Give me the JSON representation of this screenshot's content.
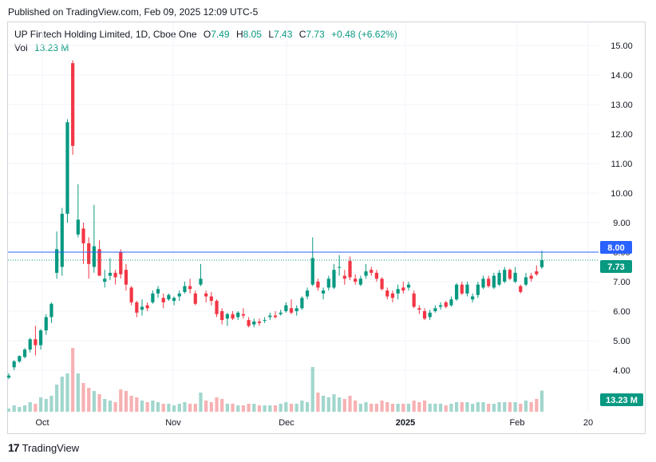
{
  "header": {
    "published": "Published on TradingView.com, Feb 09, 2025 12:09 UTC-5"
  },
  "legend": {
    "name": "UP Fintech Holding Limited, 1D, Cboe One",
    "o_label": "O",
    "o_value": "7.49",
    "h_label": "H",
    "h_value": "8.05",
    "l_label": "L",
    "l_value": "7.43",
    "c_label": "C",
    "c_value": "7.73",
    "change": "+0.48 (+6.62%)",
    "vol_label": "Vol",
    "vol_value": "13.23 M"
  },
  "footer": {
    "brand": "TradingView"
  },
  "colors": {
    "up": "#089981",
    "down": "#f23645",
    "up_vol": "#a1d6cd",
    "down_vol": "#f7b1b3",
    "hline": "#2962ff"
  },
  "chart_data": {
    "type": "candlestick",
    "title": "UP Fintech Holding Limited, 1D, Cboe One",
    "ylim": [
      3.0,
      15.5
    ],
    "y_ticks": [
      "4.00",
      "5.00",
      "6.00",
      "7.00",
      "8.00",
      "9.00",
      "10.00",
      "11.00",
      "12.00",
      "13.00",
      "14.00",
      "15.00"
    ],
    "x_ticks": [
      "Oct",
      "Nov",
      "Dec",
      "2025",
      "Feb",
      "20"
    ],
    "price_labels": {
      "horizontal_line": "8.00",
      "last_price": "7.73",
      "last_volume": "13.23 M"
    },
    "grid": true,
    "candles": [
      [
        3.75,
        3.9,
        3.7,
        3.82,
        2
      ],
      [
        4.1,
        4.35,
        4.0,
        4.3,
        4
      ],
      [
        4.3,
        4.5,
        4.25,
        4.48,
        3
      ],
      [
        4.45,
        4.75,
        4.4,
        4.7,
        4
      ],
      [
        4.7,
        5.1,
        4.6,
        5.05,
        6
      ],
      [
        5.05,
        5.5,
        4.5,
        4.85,
        5
      ],
      [
        4.85,
        5.4,
        4.7,
        5.35,
        9
      ],
      [
        5.35,
        5.9,
        5.2,
        5.8,
        8
      ],
      [
        5.8,
        6.3,
        5.6,
        6.25,
        10
      ],
      [
        7.3,
        8.7,
        7.1,
        8.1,
        17
      ],
      [
        7.5,
        9.5,
        7.2,
        9.3,
        22
      ],
      [
        9.3,
        12.5,
        9.0,
        12.4,
        24
      ],
      [
        14.4,
        14.5,
        11.3,
        11.6,
        40
      ],
      [
        8.6,
        10.3,
        8.5,
        9.1,
        24
      ],
      [
        8.8,
        9.0,
        7.6,
        8.3,
        18
      ],
      [
        8.3,
        8.5,
        7.1,
        7.6,
        15
      ],
      [
        7.5,
        9.6,
        7.3,
        8.2,
        13
      ],
      [
        8.1,
        8.4,
        7.2,
        7.2,
        11
      ],
      [
        7.0,
        7.4,
        6.8,
        7.1,
        8
      ],
      [
        7.2,
        7.8,
        7.05,
        7.3,
        7
      ],
      [
        7.3,
        7.4,
        6.9,
        7.15,
        6
      ],
      [
        8.0,
        8.1,
        7.1,
        7.25,
        14
      ],
      [
        7.4,
        7.6,
        6.7,
        6.9,
        13
      ],
      [
        6.8,
        6.85,
        6.2,
        6.3,
        10
      ],
      [
        6.3,
        6.35,
        5.8,
        5.95,
        9
      ],
      [
        6.05,
        6.4,
        5.85,
        6.15,
        7
      ],
      [
        6.2,
        6.3,
        6.0,
        6.1,
        6
      ],
      [
        6.3,
        6.7,
        6.25,
        6.6,
        7
      ],
      [
        6.6,
        6.85,
        6.45,
        6.75,
        6
      ],
      [
        6.45,
        6.6,
        6.1,
        6.3,
        5
      ],
      [
        6.4,
        6.6,
        6.35,
        6.55,
        5
      ],
      [
        6.35,
        6.5,
        6.2,
        6.45,
        4
      ],
      [
        6.5,
        6.7,
        6.35,
        6.6,
        5
      ],
      [
        6.65,
        7.0,
        6.6,
        6.85,
        6
      ],
      [
        6.85,
        7.1,
        6.6,
        6.75,
        5
      ],
      [
        6.6,
        6.7,
        6.2,
        6.25,
        5
      ],
      [
        6.9,
        7.6,
        6.85,
        7.1,
        12
      ],
      [
        6.6,
        6.7,
        6.3,
        6.5,
        7
      ],
      [
        6.5,
        6.65,
        6.2,
        6.35,
        6
      ],
      [
        6.35,
        6.4,
        5.8,
        5.9,
        9
      ],
      [
        6.0,
        6.1,
        5.55,
        5.7,
        8
      ],
      [
        5.75,
        5.95,
        5.5,
        5.9,
        5
      ],
      [
        5.9,
        6.0,
        5.7,
        5.75,
        5
      ],
      [
        5.8,
        6.0,
        5.7,
        5.95,
        4
      ],
      [
        5.9,
        6.1,
        5.75,
        5.85,
        4
      ],
      [
        5.7,
        5.8,
        5.45,
        5.5,
        5
      ],
      [
        5.55,
        5.75,
        5.45,
        5.65,
        5
      ],
      [
        5.65,
        5.75,
        5.5,
        5.6,
        4
      ],
      [
        5.7,
        5.8,
        5.6,
        5.7,
        4
      ],
      [
        5.8,
        5.95,
        5.7,
        5.85,
        4
      ],
      [
        5.85,
        6.0,
        5.75,
        5.8,
        4
      ],
      [
        5.9,
        6.05,
        5.85,
        5.95,
        5
      ],
      [
        6.0,
        6.3,
        5.95,
        6.2,
        6
      ],
      [
        6.1,
        6.4,
        5.9,
        5.95,
        5
      ],
      [
        6.0,
        6.2,
        5.85,
        6.1,
        5
      ],
      [
        6.1,
        6.5,
        6.05,
        6.45,
        7
      ],
      [
        6.5,
        6.8,
        6.4,
        6.7,
        6
      ],
      [
        6.9,
        8.5,
        6.85,
        7.8,
        28
      ],
      [
        7.0,
        7.1,
        6.7,
        6.8,
        12
      ],
      [
        6.6,
        6.8,
        6.4,
        6.7,
        10
      ],
      [
        6.8,
        7.2,
        6.7,
        7.1,
        9
      ],
      [
        6.8,
        7.6,
        6.75,
        7.4,
        11
      ],
      [
        7.5,
        7.9,
        7.2,
        7.5,
        9
      ],
      [
        7.2,
        7.4,
        6.9,
        7.1,
        8
      ],
      [
        7.7,
        7.85,
        7.05,
        7.15,
        10
      ],
      [
        7.1,
        7.25,
        6.9,
        7.0,
        7
      ],
      [
        6.9,
        7.2,
        6.85,
        7.1,
        5
      ],
      [
        7.2,
        7.6,
        7.1,
        7.35,
        6
      ],
      [
        7.4,
        7.5,
        7.2,
        7.3,
        5
      ],
      [
        7.3,
        7.4,
        7.0,
        7.1,
        5
      ],
      [
        7.1,
        7.15,
        6.7,
        6.75,
        7
      ],
      [
        6.7,
        6.8,
        6.4,
        6.5,
        6
      ],
      [
        6.6,
        6.7,
        6.3,
        6.45,
        5
      ],
      [
        6.6,
        6.9,
        6.4,
        6.75,
        5
      ],
      [
        6.8,
        7.0,
        6.6,
        6.7,
        5
      ],
      [
        6.8,
        7.0,
        6.7,
        6.9,
        5
      ],
      [
        6.6,
        6.7,
        6.1,
        6.15,
        7
      ],
      [
        6.1,
        6.2,
        5.9,
        6.05,
        6
      ],
      [
        6.0,
        6.1,
        5.7,
        5.75,
        7
      ],
      [
        5.8,
        6.05,
        5.7,
        5.95,
        5
      ],
      [
        6.0,
        6.2,
        5.95,
        6.1,
        5
      ],
      [
        6.15,
        6.3,
        6.05,
        6.2,
        5
      ],
      [
        6.3,
        6.35,
        6.1,
        6.15,
        4
      ],
      [
        6.2,
        6.5,
        6.15,
        6.4,
        5
      ],
      [
        6.4,
        6.95,
        6.35,
        6.9,
        6
      ],
      [
        6.9,
        7.0,
        6.55,
        6.6,
        6
      ],
      [
        6.6,
        7.0,
        6.5,
        6.9,
        6
      ],
      [
        6.4,
        6.6,
        6.3,
        6.5,
        5
      ],
      [
        6.55,
        7.0,
        6.45,
        6.9,
        6
      ],
      [
        6.8,
        7.2,
        6.75,
        7.1,
        6
      ],
      [
        7.1,
        7.2,
        6.8,
        6.85,
        5
      ],
      [
        6.8,
        7.3,
        6.75,
        7.2,
        5
      ],
      [
        6.9,
        7.4,
        6.85,
        7.3,
        6
      ],
      [
        7.0,
        7.5,
        6.95,
        7.4,
        6
      ],
      [
        7.4,
        7.45,
        7.05,
        7.1,
        6
      ],
      [
        7.0,
        7.5,
        6.95,
        7.3,
        6
      ],
      [
        6.85,
        6.9,
        6.6,
        6.65,
        5
      ],
      [
        6.9,
        7.3,
        6.85,
        7.15,
        7
      ],
      [
        7.2,
        7.3,
        7.0,
        7.1,
        6
      ],
      [
        7.35,
        7.55,
        7.2,
        7.25,
        8
      ],
      [
        7.49,
        8.05,
        7.43,
        7.73,
        13.23
      ]
    ]
  }
}
